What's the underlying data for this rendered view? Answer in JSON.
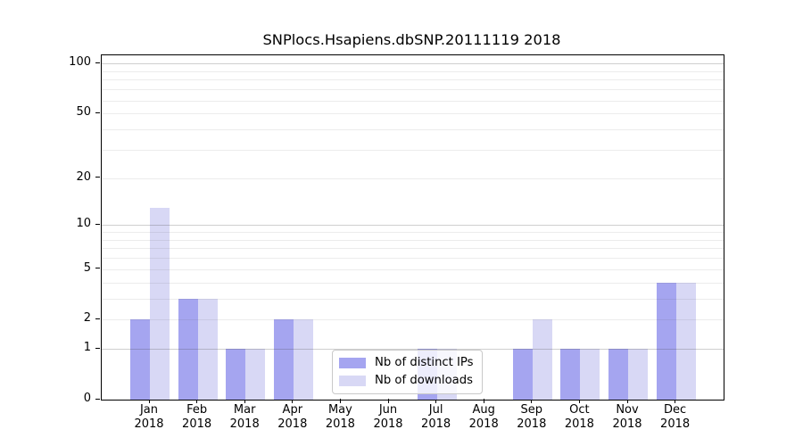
{
  "title": "SNPlocs.Hsapiens.dbSNP.20111119 2018",
  "chart_data": {
    "type": "bar",
    "title": "SNPlocs.Hsapiens.dbSNP.20111119 2018",
    "categories": [
      "Jan",
      "Feb",
      "Mar",
      "Apr",
      "May",
      "Jun",
      "Jul",
      "Aug",
      "Sep",
      "Oct",
      "Nov",
      "Dec"
    ],
    "category_year": "2018",
    "series": [
      {
        "name": "Nb of distinct IPs",
        "color": "#a5a5f0",
        "values": [
          2,
          3,
          1,
          2,
          0,
          0,
          1,
          0,
          1,
          1,
          1,
          4
        ]
      },
      {
        "name": "Nb of downloads",
        "color": "#d8d8f5",
        "values": [
          13,
          3,
          1,
          2,
          0,
          0,
          1,
          0,
          2,
          1,
          1,
          4
        ]
      }
    ],
    "y_axis": {
      "scale": "log10(1+value)",
      "tick_values": [
        0,
        1,
        2,
        5,
        10,
        20,
        50,
        100
      ],
      "tick_labels": [
        "0",
        "1",
        "2",
        "5",
        "10",
        "20",
        "50",
        "100"
      ],
      "major_gridlines": [
        1,
        10,
        100
      ],
      "minor_gridlines": [
        2,
        3,
        4,
        5,
        6,
        7,
        8,
        9,
        20,
        30,
        40,
        50,
        60,
        70,
        80,
        90
      ],
      "range": [
        0,
        111
      ]
    },
    "x_axis": {
      "label_line2": "2018"
    },
    "grid": "horizontal",
    "legend": {
      "position": "inside-bottom-center",
      "entries": [
        "Nb of distinct IPs",
        "Nb of downloads"
      ]
    }
  }
}
